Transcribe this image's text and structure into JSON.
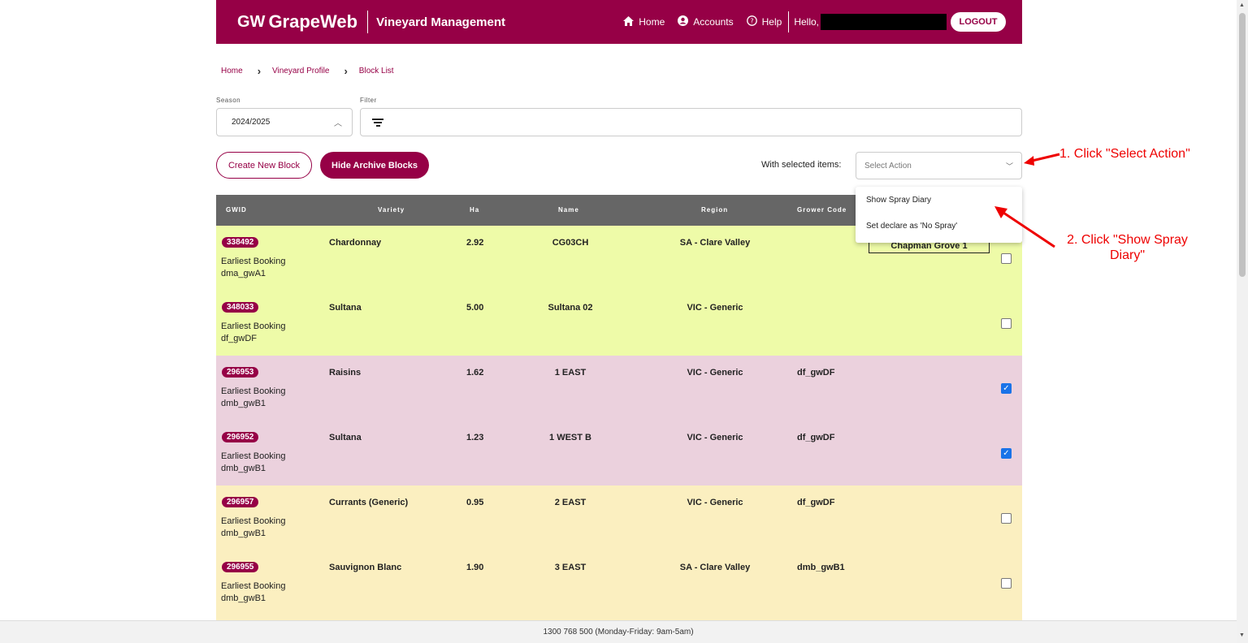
{
  "header": {
    "logo_mark": "GW",
    "logo_text": "GrapeWeb",
    "subtitle": "Vineyard Management",
    "nav": [
      {
        "label": "Home",
        "icon": "home-icon"
      },
      {
        "label": "Accounts",
        "icon": "account-icon"
      },
      {
        "label": "Help",
        "icon": "help-icon"
      }
    ],
    "hello": "Hello,",
    "logout": "LOGOUT"
  },
  "breadcrumb": [
    "Home",
    "Vineyard Profile",
    "Block List"
  ],
  "season": {
    "label": "Season",
    "value": "2024/2025"
  },
  "filter": {
    "label": "Filter"
  },
  "buttons": {
    "create": "Create New Block",
    "hide_archive": "Hide Archive Blocks"
  },
  "with_selected": "With selected items:",
  "select_action": {
    "placeholder": "Select Action",
    "options": [
      "Show Spray Diary",
      "Set declare as 'No Spray'"
    ]
  },
  "table": {
    "columns": [
      "GWID",
      "Variety",
      "Ha",
      "Name",
      "Region",
      "Grower Code"
    ],
    "rows": [
      {
        "gwid": "338492",
        "booking_label": "Earliest Booking",
        "booking_code": "dma_gwA1",
        "variety": "Chardonnay",
        "ha": "2.92",
        "name": "CG03CH",
        "region": "SA - Clare Valley",
        "grower_code": "",
        "extra": "Chapman Grove 1",
        "checked": false,
        "color": "#eefba8"
      },
      {
        "gwid": "348033",
        "booking_label": "Earliest Booking",
        "booking_code": "df_gwDF",
        "variety": "Sultana",
        "ha": "5.00",
        "name": "Sultana 02",
        "region": "VIC - Generic",
        "grower_code": "",
        "checked": false,
        "color": "#eefba8"
      },
      {
        "gwid": "296953",
        "booking_label": "Earliest Booking",
        "booking_code": "dmb_gwB1",
        "variety": "Raisins",
        "ha": "1.62",
        "name": "1 EAST",
        "region": "VIC - Generic",
        "grower_code": "df_gwDF",
        "checked": true,
        "color": "#ebd1dd"
      },
      {
        "gwid": "296952",
        "booking_label": "Earliest Booking",
        "booking_code": "dmb_gwB1",
        "variety": "Sultana",
        "ha": "1.23",
        "name": "1 WEST B",
        "region": "VIC - Generic",
        "grower_code": "df_gwDF",
        "checked": true,
        "color": "#ebd1dd"
      },
      {
        "gwid": "296957",
        "booking_label": "Earliest Booking",
        "booking_code": "dmb_gwB1",
        "variety": "Currants (Generic)",
        "ha": "0.95",
        "name": "2 EAST",
        "region": "VIC - Generic",
        "grower_code": "df_gwDF",
        "checked": false,
        "color": "#fbefc0"
      },
      {
        "gwid": "296955",
        "booking_label": "Earliest Booking",
        "booking_code": "dmb_gwB1",
        "variety": "Sauvignon Blanc",
        "ha": "1.90",
        "name": "3 EAST",
        "region": "SA - Clare Valley",
        "grower_code": "dmb_gwB1",
        "checked": false,
        "color": "#fbefc0"
      }
    ]
  },
  "annotations": {
    "step1": "1. Click \"Select Action\"",
    "step2": "2. Click \"Show Spray Diary\""
  },
  "footer": "1300 768 500 (Monday-Friday: 9am-5am)",
  "colors": {
    "brand": "#960046",
    "annotation": "#e00000"
  }
}
